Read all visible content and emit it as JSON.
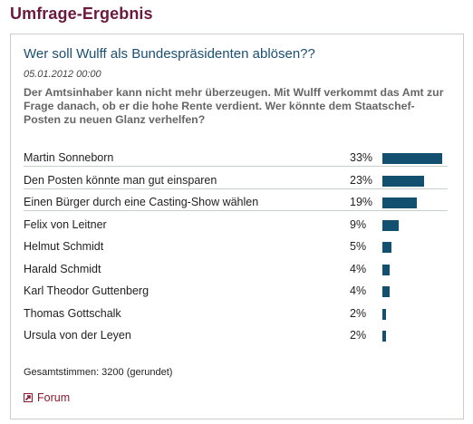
{
  "page_title": "Umfrage-Ergebnis",
  "poll": {
    "question": "Wer soll Wulff als Bundespräsidenten ablösen??",
    "date": "05.01.2012 00:00",
    "description": "Der Amtsinhaber kann nicht mehr überzeugen. Mit Wulff verkommt das Amt zur Frage danach, ob er die hohe Rente verdient. Wer könnte dem Staatschef-Posten zu neuen Glanz verhelfen?",
    "results": [
      {
        "label": "Martin Sonneborn",
        "percent": "33%",
        "value": 33
      },
      {
        "label": "Den Posten könnte man gut einsparen",
        "percent": "23%",
        "value": 23
      },
      {
        "label": "Einen Bürger durch eine Casting-Show wählen",
        "percent": "19%",
        "value": 19
      },
      {
        "label": "Felix von Leitner",
        "percent": "9%",
        "value": 9
      },
      {
        "label": "Helmut Schmidt",
        "percent": "5%",
        "value": 5
      },
      {
        "label": "Harald Schmidt",
        "percent": "4%",
        "value": 4
      },
      {
        "label": "Karl Theodor Guttenberg",
        "percent": "4%",
        "value": 4
      },
      {
        "label": "Thomas Gottschalk",
        "percent": "2%",
        "value": 2
      },
      {
        "label": "Ursula von der Leyen",
        "percent": "2%",
        "value": 2
      }
    ],
    "total": "Gesamtstimmen: 3200 (gerundet)",
    "forum_link": "Forum",
    "forum_icon": "external-link-icon",
    "bar_color": "#134f6e"
  }
}
